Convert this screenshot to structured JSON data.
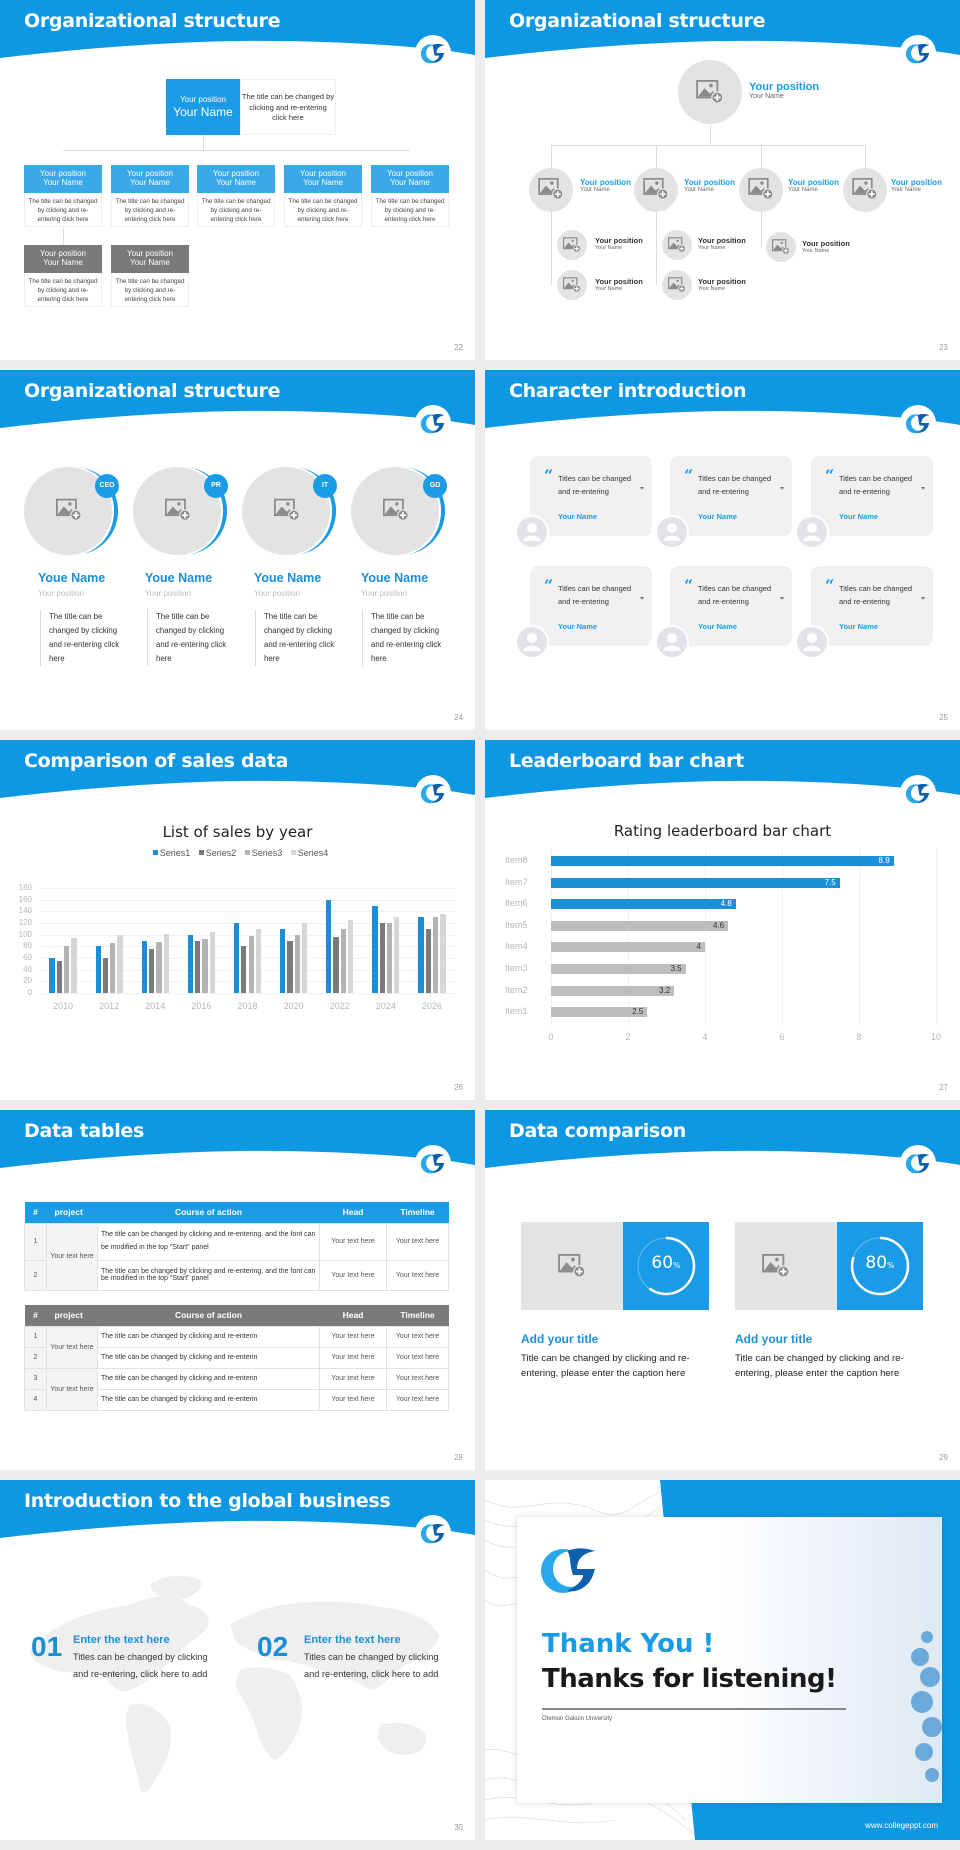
{
  "theme": {
    "accent": "#1a9be6",
    "gray_header": "#7a7a7a",
    "placeholder_gray": "#e3e3e3",
    "background": "#ececec"
  },
  "slides": {
    "s22": {
      "title": "Organizational structure",
      "page": "22",
      "top": {
        "position": "Your position",
        "name": "Your Name",
        "desc": "The title can be changed by clicking and re-entering click here"
      },
      "cards": [
        {
          "position": "Your position",
          "name": "Your Name",
          "desc": "The title can be changed by clicking and re-entering click here",
          "style": "blue"
        },
        {
          "position": "Your position",
          "name": "Your Name",
          "desc": "The title can be changed by clicking and re-entering click here",
          "style": "blue"
        },
        {
          "position": "Your position",
          "name": "Your Name",
          "desc": "The title can be changed by clicking and re-entering click here",
          "style": "blue"
        },
        {
          "position": "Your position",
          "name": "Your Name",
          "desc": "The title can be changed by clicking and re-entering click here",
          "style": "blue"
        },
        {
          "position": "Your position",
          "name": "Your Name",
          "desc": "The title can be changed by clicking and re-entering click here",
          "style": "blue"
        },
        {
          "position": "Your position",
          "name": "Your Name",
          "desc": "The title can be changed by clicking and re-entering click here",
          "style": "gray"
        },
        {
          "position": "Your position",
          "name": "Your Name",
          "desc": "The title can be changed by clicking and re-entering click here",
          "style": "gray"
        }
      ]
    },
    "s23": {
      "title": "Organizational structure",
      "page": "23",
      "top": {
        "position": "Your position",
        "name": "Your Name"
      },
      "level2": [
        {
          "position": "Your position",
          "name": "Your Name"
        },
        {
          "position": "Your position",
          "name": "Your Name"
        },
        {
          "position": "Your position",
          "name": "Your Name"
        },
        {
          "position": "Your position",
          "name": "Your Name"
        }
      ],
      "level3": [
        {
          "position": "Your position",
          "name": "Your Name"
        },
        {
          "position": "Your position",
          "name": "Your Name"
        },
        {
          "position": "Your position",
          "name": "Your Name"
        },
        {
          "position": "Your position",
          "name": "Your Name"
        },
        {
          "position": "Your position",
          "name": "Your Name"
        }
      ]
    },
    "s24": {
      "title": "Organizational structure",
      "page": "24",
      "members": [
        {
          "badge": "CEO",
          "name": "Youe Name",
          "position": "Your position",
          "desc": "The title can be changed by clicking and re-entering click here"
        },
        {
          "badge": "PR",
          "name": "Youe Name",
          "position": "Your position",
          "desc": "The title can be changed by clicking and re-entering click here"
        },
        {
          "badge": "IT",
          "name": "Youe Name",
          "position": "Your position",
          "desc": "The title can be changed by clicking and re-entering click here"
        },
        {
          "badge": "GD",
          "name": "Youe Name",
          "position": "Your position",
          "desc": "The title can be changed by clicking and re-entering click here"
        }
      ]
    },
    "s25": {
      "title": "Character introduction",
      "page": "25",
      "open_quote": "“",
      "close_quote": "”",
      "cards": [
        {
          "text": "Titles can be changed and re-entering",
          "name": "Your Name"
        },
        {
          "text": "Titles can be changed and re-entering",
          "name": "Your Name"
        },
        {
          "text": "Titles can be changed and re-entering",
          "name": "Your Name"
        },
        {
          "text": "Titles can be changed and re-entering",
          "name": "Your Name"
        },
        {
          "text": "Titles can be changed and re-entering",
          "name": "Your Name"
        },
        {
          "text": "Titles can be changed and re-entering",
          "name": "Your Name"
        }
      ]
    },
    "s26": {
      "title": "Comparison of sales data",
      "page": "26"
    },
    "s27": {
      "title": "Leaderboard bar chart",
      "page": "27"
    },
    "s28": {
      "title": "Data tables",
      "page": "28",
      "headers": [
        "#",
        "project",
        "Course of action",
        "Head",
        "Timeline"
      ],
      "table1": {
        "project": "Your text here",
        "rows": [
          {
            "num": "1",
            "action": " The title can be changed by clicking and re-entering, and the font can be modified in the top \"Start\" panel",
            "head": "Your text here",
            "timeline": "Your text here"
          },
          {
            "num": "2",
            "action": "The title can be changed by clicking and re-entering, and the font can be modified in the top \"Start\" panel",
            "head": "Your text here",
            "timeline": "Your text here"
          }
        ]
      },
      "table2": {
        "projects": [
          "Your text here",
          "Your text here"
        ],
        "rows": [
          {
            "num": "1",
            "action": "The title can be changed by clicking and re-enterin",
            "head": "Your text here",
            "timeline": "Your text here"
          },
          {
            "num": "2",
            "action": "The title can be changed by clicking and re-enterin",
            "head": "Your text here",
            "timeline": "Your text here"
          },
          {
            "num": "3",
            "action": "The title can be changed by clicking and re-enterin",
            "head": "Your text here",
            "timeline": "Your text here"
          },
          {
            "num": "4",
            "action": "The title can be changed by clicking and re-enterin",
            "head": "Your text here",
            "timeline": "Your text here"
          }
        ]
      }
    },
    "s29": {
      "title": "Data comparison",
      "page": "29",
      "items": [
        {
          "percent": "60",
          "suffix": "%",
          "value": 60,
          "heading": "Add your title",
          "text": "Title can be changed by clicking and re-entering, please enter the caption here"
        },
        {
          "percent": "80",
          "suffix": "%",
          "value": 80,
          "heading": "Add your title",
          "text": "Title can be changed by clicking and re-entering, please enter the caption here"
        }
      ]
    },
    "s30": {
      "title": "Introduction to the global business",
      "page": "30",
      "items": [
        {
          "num": "01",
          "heading": "Enter the text here",
          "text": "Titles can be changed by clicking and re-entering, click here to add"
        },
        {
          "num": "02",
          "heading": "Enter the text here",
          "text": "Titles can be changed by clicking and re-entering, click here to add"
        }
      ]
    },
    "s31": {
      "thank_you": "Thank You !",
      "thanks": "Thanks for listening!",
      "university": "Otemon Gakuin University",
      "url": "www.collegeppt.com"
    }
  },
  "chart_data": [
    {
      "type": "bar",
      "title": "List of sales by year",
      "categories": [
        "2010",
        "2012",
        "2014",
        "2016",
        "2018",
        "2020",
        "2022",
        "2024",
        "2026"
      ],
      "series": [
        {
          "name": "Series1",
          "color": "#1a8fd8",
          "values": [
            60,
            80,
            90,
            100,
            120,
            110,
            160,
            150,
            130
          ]
        },
        {
          "name": "Series2",
          "color": "#7a7a7a",
          "values": [
            55,
            60,
            75,
            90,
            80,
            90,
            96,
            120,
            110
          ]
        },
        {
          "name": "Series3",
          "color": "#b3b3b3",
          "values": [
            80,
            86,
            88,
            92,
            98,
            100,
            110,
            120,
            130
          ]
        },
        {
          "name": "Series4",
          "color": "#d6d6d6",
          "values": [
            95,
            99,
            102,
            105,
            110,
            120,
            126,
            130,
            135
          ]
        }
      ],
      "yticks": [
        "0",
        "20",
        "40",
        "60",
        "80",
        "100",
        "120",
        "140",
        "160",
        "180"
      ],
      "xlabel": "",
      "ylabel": "",
      "ylim": [
        0,
        180
      ],
      "grid": true,
      "legend_position": "top"
    },
    {
      "type": "bar",
      "orientation": "horizontal",
      "title": "Rating leaderboard bar chart",
      "categories": [
        "Item8",
        "Item7",
        "Item6",
        "Item5",
        "Item4",
        "Item3",
        "Item2",
        "Item1"
      ],
      "values": [
        8.9,
        7.5,
        4.8,
        4.6,
        4,
        3.5,
        3.2,
        2.5
      ],
      "labels": [
        "8.9",
        "7.5",
        "4.8",
        "4.6",
        "4",
        "3.5",
        "3.2",
        "2.5"
      ],
      "highlight": [
        true,
        true,
        true,
        false,
        false,
        false,
        false,
        false
      ],
      "xticks": [
        "0",
        "2",
        "4",
        "6",
        "8",
        "10"
      ],
      "xlim": [
        0,
        10
      ],
      "grid": true
    }
  ]
}
